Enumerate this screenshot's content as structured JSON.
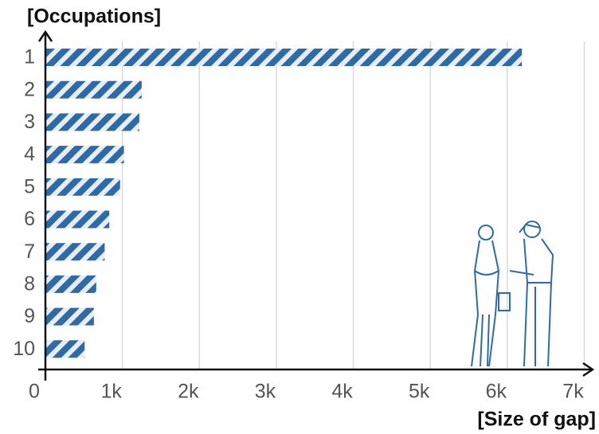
{
  "chart_data": {
    "type": "barh",
    "y_label": "[Occupations]",
    "x_label": "[Size of gap]",
    "categories": [
      "1",
      "2",
      "3",
      "4",
      "5",
      "6",
      "7",
      "8",
      "9",
      "10"
    ],
    "values": [
      6190,
      1250,
      1220,
      1020,
      970,
      830,
      770,
      660,
      630,
      510
    ],
    "color": "#2e6aa6",
    "xlim": [
      0,
      7000
    ],
    "xticks": [
      0,
      {
        "value": 1000,
        "label": "1k"
      },
      {
        "value": 2000,
        "label": "2k"
      },
      {
        "value": 3000,
        "label": "3k"
      },
      {
        "value": 4000,
        "label": "4k"
      },
      {
        "value": 5000,
        "label": "5k"
      },
      {
        "value": 6000,
        "label": "6k"
      },
      {
        "value": 7000,
        "label": "7k"
      }
    ],
    "grid": true
  }
}
